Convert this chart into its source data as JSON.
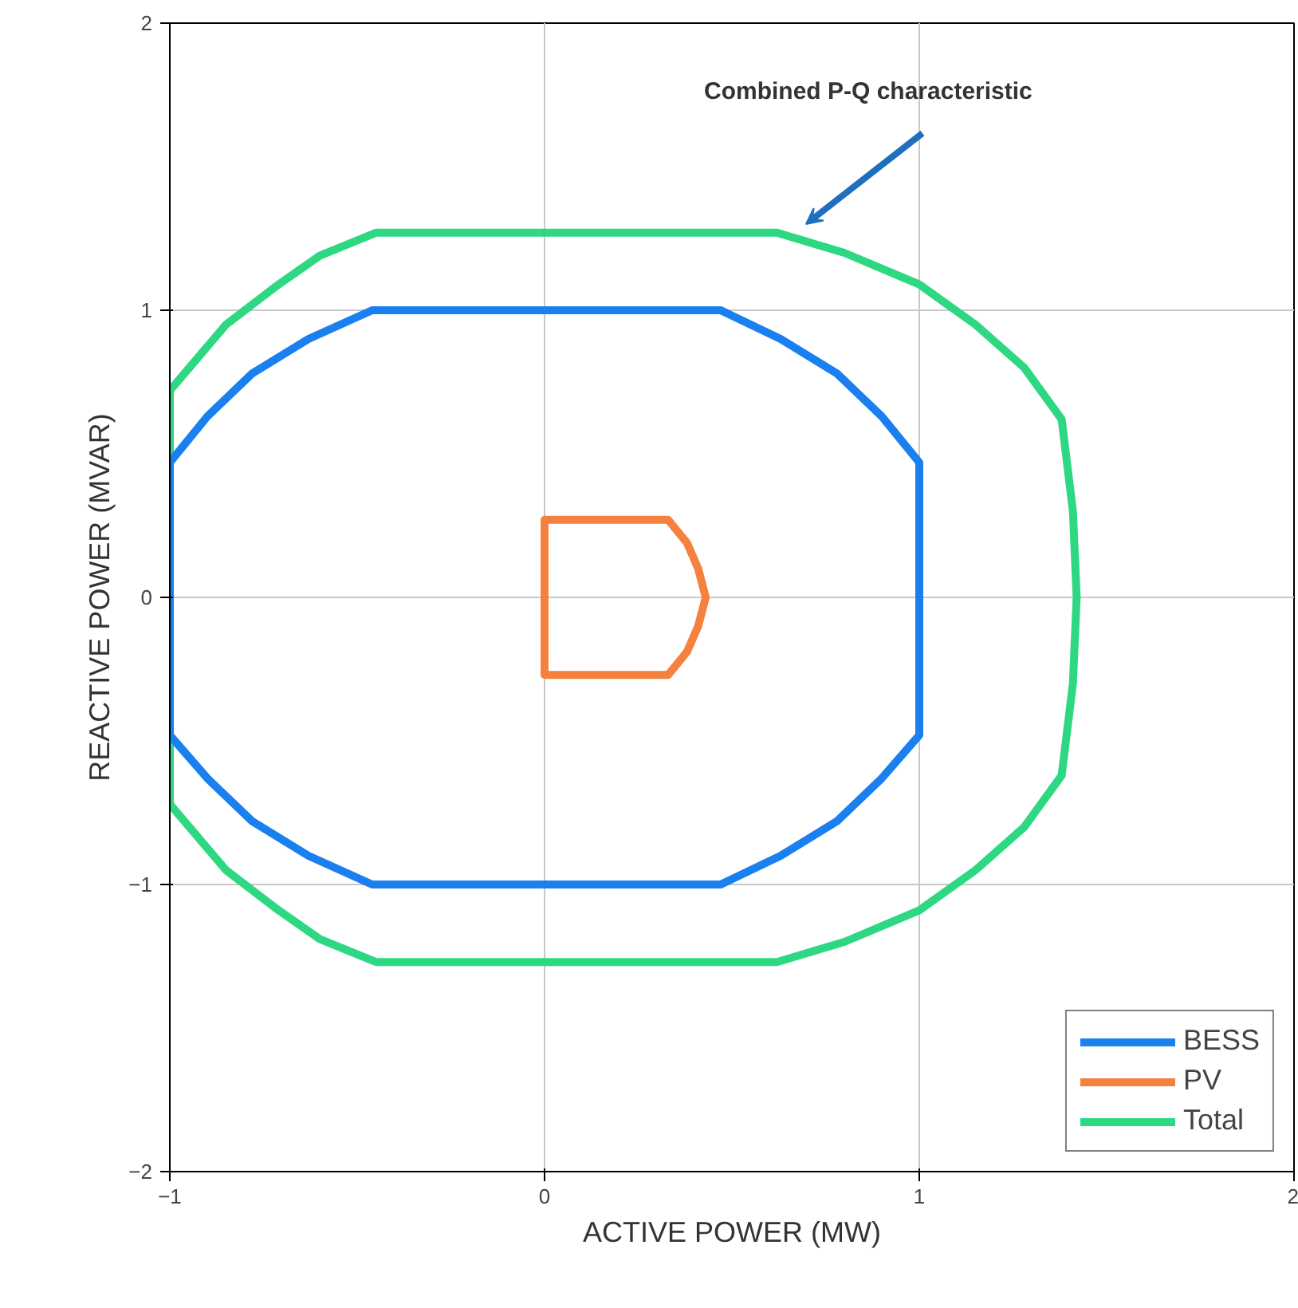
{
  "chart_data": {
    "type": "line",
    "xlabel": "ACTIVE POWER (MW)",
    "ylabel": "REACTIVE POWER (MVAR)",
    "xlim": [
      -1,
      2
    ],
    "ylim": [
      -2,
      2
    ],
    "xticks": [
      {
        "value": -1,
        "label": "−1"
      },
      0,
      1,
      2
    ],
    "yticks": [
      {
        "value": -2,
        "label": "−2"
      },
      {
        "value": -1,
        "label": "−1"
      },
      0,
      1,
      2
    ],
    "grid": true,
    "legend": "bottom right",
    "marker": "none",
    "line_style": "solid",
    "annotations": [
      "Combined P-Q characteristic"
    ],
    "series": [
      {
        "name": "BESS",
        "color": "#1a80f0",
        "x": [
          -1,
          -0.9,
          -0.78,
          -0.63,
          -0.46,
          0.47,
          0.63,
          0.78,
          0.9,
          1,
          1,
          0.9,
          0.78,
          0.63,
          0.47,
          -0.46,
          -0.63,
          -0.78,
          -0.9,
          -1,
          -1,
          -0.9
        ],
        "values": [
          0.47,
          0.63,
          0.78,
          0.9,
          1,
          1,
          0.9,
          0.78,
          0.63,
          0.47,
          -0.48,
          -0.63,
          -0.78,
          -0.9,
          -1,
          -1,
          -0.9,
          -0.78,
          -0.63,
          -0.48,
          0.47,
          0.63
        ]
      },
      {
        "name": "PV",
        "color": "#f5813f",
        "x": [
          0,
          0.33,
          0.38,
          0.41,
          0.43,
          0.41,
          0.38,
          0.33,
          0,
          0,
          0.33
        ],
        "values": [
          0.27,
          0.27,
          0.19,
          0.1,
          0,
          -0.1,
          -0.19,
          -0.27,
          -0.27,
          0.27,
          0.27
        ]
      },
      {
        "name": "Total",
        "color": "#2ed882",
        "x": [
          -1,
          -0.85,
          -0.72,
          -0.6,
          -0.45,
          0.62,
          0.8,
          1,
          1.15,
          1.28,
          1.38,
          1.41,
          1.42,
          1.41,
          1.38,
          1.28,
          1.15,
          1,
          0.8,
          0.62,
          -0.45,
          -0.6,
          -0.72,
          -0.85,
          -1,
          -1,
          -0.85
        ],
        "values": [
          0.72,
          0.95,
          1.08,
          1.19,
          1.27,
          1.27,
          1.2,
          1.09,
          0.95,
          0.8,
          0.62,
          0.3,
          0,
          -0.3,
          -0.62,
          -0.8,
          -0.95,
          -1.09,
          -1.2,
          -1.27,
          -1.27,
          -1.19,
          -1.08,
          -0.95,
          -0.72,
          0.72,
          0.95
        ]
      }
    ]
  }
}
